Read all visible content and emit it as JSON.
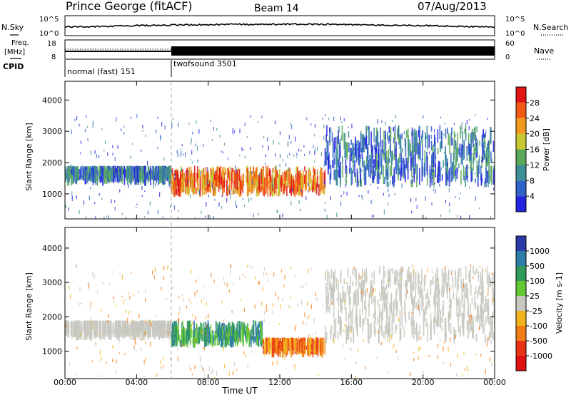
{
  "header": {
    "station": "Prince George (fitACF)",
    "beam": "Beam 14",
    "date": "07/Aug/2013"
  },
  "side_labels": {
    "nsky": "N.Sky",
    "nsearch": "N.Search",
    "freq": "Freq.",
    "freq_unit": "[MHz]",
    "nave": "Nave",
    "cpid": "CPID"
  },
  "noise_axis": {
    "left_ticks": [
      "10^5",
      "10^0"
    ],
    "right_ticks": [
      "10^5",
      "10^0"
    ]
  },
  "freq_axis": {
    "left_ticks": [
      "18",
      "8"
    ],
    "right_ticks": [
      "60",
      "0"
    ]
  },
  "cpid": [
    {
      "label": "normal (fast) 151",
      "start_hour": 0
    },
    {
      "label": "twofsound 3501",
      "start_hour": 6
    }
  ],
  "chart_data": [
    {
      "type": "heatmap",
      "title": "",
      "ylabel": "Slant Range [km]",
      "y_ticks": [
        1000,
        2000,
        3000,
        4000
      ],
      "ylim": [
        200,
        4600
      ],
      "xlim": [
        0,
        24
      ],
      "colorbar": {
        "label": "Power [dB]",
        "ticks": [
          4,
          8,
          12,
          16,
          20,
          24,
          28
        ],
        "colors": [
          "#2424e0",
          "#2f63c8",
          "#3e8f98",
          "#5aa85a",
          "#c8c832",
          "#f29a1e",
          "#f25a14",
          "#e21414"
        ]
      },
      "regions": [
        {
          "x": [
            0,
            5.9
          ],
          "y": [
            1400,
            1900
          ],
          "level": "4-16 dB"
        },
        {
          "x": [
            5.9,
            14.5
          ],
          "y": [
            900,
            1900
          ],
          "level": "20-32 dB"
        },
        {
          "x": [
            14.5,
            24
          ],
          "y": [
            1200,
            3200
          ],
          "level": "4-16 dB"
        }
      ]
    },
    {
      "type": "heatmap",
      "title": "",
      "ylabel": "Slant Range [km]",
      "xlabel": "Time UT",
      "x_tick_labels": [
        "00:00",
        "04:00",
        "08:00",
        "12:00",
        "16:00",
        "20:00",
        "00:00"
      ],
      "y_ticks": [
        1000,
        2000,
        3000,
        4000
      ],
      "ylim": [
        200,
        4600
      ],
      "xlim": [
        0,
        24
      ],
      "colorbar": {
        "label": "Velocity [m s-1]",
        "ticks": [
          "1000",
          "500",
          "100",
          "25",
          "-25",
          "-100",
          "-500",
          "-1000"
        ],
        "colors": [
          "#2a3aa8",
          "#2e7ca8",
          "#2f9a5a",
          "#64c832",
          "#c8c8c0",
          "#f2b41e",
          "#f27d14",
          "#e83214",
          "#e01010"
        ]
      },
      "regions": [
        {
          "x": [
            0,
            5.9
          ],
          "y": [
            1400,
            1900
          ],
          "level": "-25 to 25 m/s"
        },
        {
          "x": [
            5.9,
            11
          ],
          "y": [
            1100,
            1900
          ],
          "level": "100 to 500 m/s"
        },
        {
          "x": [
            11,
            14.5
          ],
          "y": [
            900,
            1400
          ],
          "level": "-100 to -500 m/s"
        },
        {
          "x": [
            14.5,
            24
          ],
          "y": [
            1200,
            3500
          ],
          "level": "-25 to 25 m/s"
        }
      ]
    }
  ]
}
